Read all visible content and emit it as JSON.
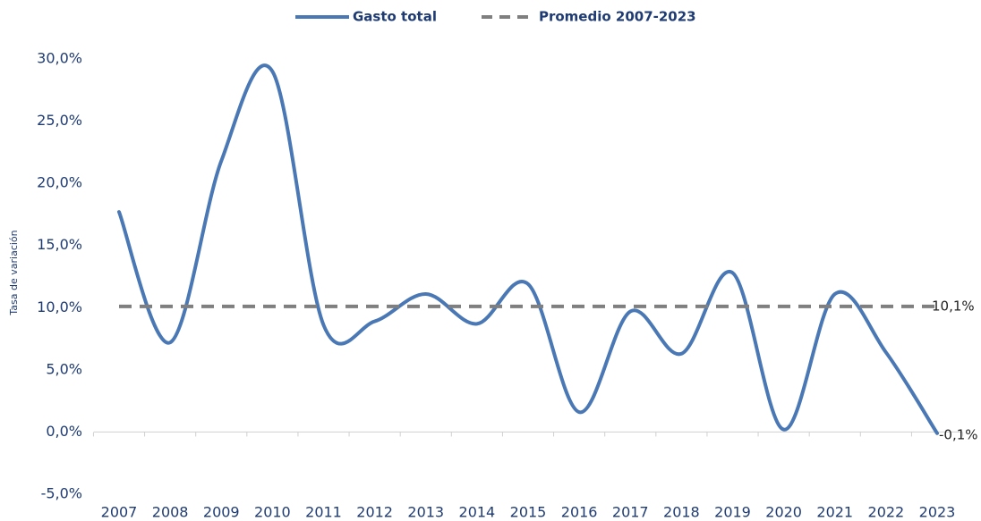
{
  "chart_data": {
    "type": "line",
    "y_axis_label": "Tasa de variación",
    "categories": [
      "2007",
      "2008",
      "2009",
      "2010",
      "2011",
      "2012",
      "2013",
      "2014",
      "2015",
      "2016",
      "2017",
      "2018",
      "2019",
      "2020",
      "2021",
      "2022",
      "2023"
    ],
    "series": [
      {
        "name": "Gasto total",
        "color": "#4a78b5",
        "values": [
          17.7,
          7.2,
          21.8,
          29.0,
          8.6,
          8.9,
          11.1,
          8.7,
          11.9,
          1.6,
          9.7,
          6.3,
          12.8,
          0.2,
          11.1,
          6.4,
          -0.1
        ],
        "value_labels": [
          null,
          null,
          null,
          null,
          null,
          null,
          null,
          null,
          null,
          null,
          null,
          null,
          null,
          null,
          null,
          null,
          "-0,1%"
        ]
      },
      {
        "name": "Promedio 2007-2023",
        "color": "#7f7f7f",
        "dashed": true,
        "value": 10.1,
        "value_label": "10,1%"
      }
    ],
    "ylim": [
      -5,
      30
    ],
    "yticks": [
      {
        "value": -5,
        "label": "-5,0%"
      },
      {
        "value": 0,
        "label": "0,0%"
      },
      {
        "value": 5,
        "label": "5,0%"
      },
      {
        "value": 10,
        "label": "10,0%"
      },
      {
        "value": 15,
        "label": "15,0%"
      },
      {
        "value": 20,
        "label": "20,0%"
      },
      {
        "value": 25,
        "label": "25,0%"
      },
      {
        "value": 30,
        "label": "30,0%"
      }
    ],
    "grid": false,
    "legend": "top"
  }
}
